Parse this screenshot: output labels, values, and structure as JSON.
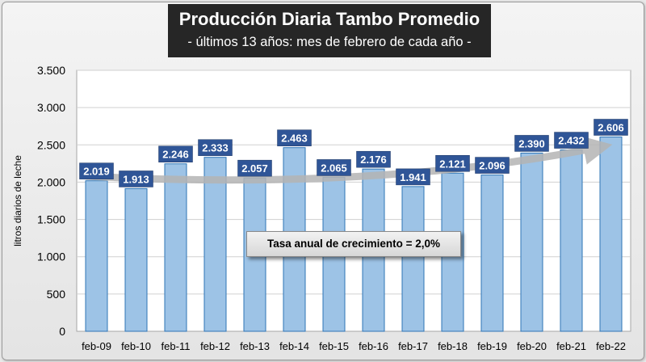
{
  "title": "Producción Diaria Tambo Promedio",
  "subtitle": "- últimos 13 años: mes de febrero de cada año -",
  "annotation": "Tasa anual de crecimiento = 2,0%",
  "colors": {
    "bar_fill": "#9dc3e6",
    "bar_stroke": "#2e75b6",
    "label_bg": "#2f5597",
    "label_text": "#ffffff",
    "title_bg": "#262626",
    "trend_arrow": "#b4b4b4"
  },
  "chart_data": {
    "type": "bar",
    "title": "Producción Diaria Tambo Promedio",
    "subtitle": "- últimos 13 años: mes de febrero de cada año -",
    "xlabel": "",
    "ylabel": "litros diarios de leche",
    "ylim": [
      0,
      3500
    ],
    "yticks": [
      0,
      500,
      1000,
      1500,
      2000,
      2500,
      3000,
      3500
    ],
    "ytick_labels": [
      "0",
      "500",
      "1.000",
      "1.500",
      "2.000",
      "2.500",
      "3.000",
      "3.500"
    ],
    "categories": [
      "feb-09",
      "feb-10",
      "feb-11",
      "feb-12",
      "feb-13",
      "feb-14",
      "feb-15",
      "feb-16",
      "feb-17",
      "feb-18",
      "feb-19",
      "feb-20",
      "feb-21",
      "feb-22"
    ],
    "values": [
      2019,
      1913,
      2246,
      2333,
      2057,
      2463,
      2065,
      2176,
      1941,
      2121,
      2096,
      2390,
      2432,
      2606
    ],
    "value_labels": [
      "2.019",
      "1.913",
      "2.246",
      "2.333",
      "2.057",
      "2.463",
      "2.065",
      "2.176",
      "1.941",
      "2.121",
      "2.096",
      "2.390",
      "2.432",
      "2.606"
    ],
    "grid": true,
    "legend": "none",
    "annotations": [
      "Tasa anual de crecimiento = 2,0%"
    ]
  }
}
